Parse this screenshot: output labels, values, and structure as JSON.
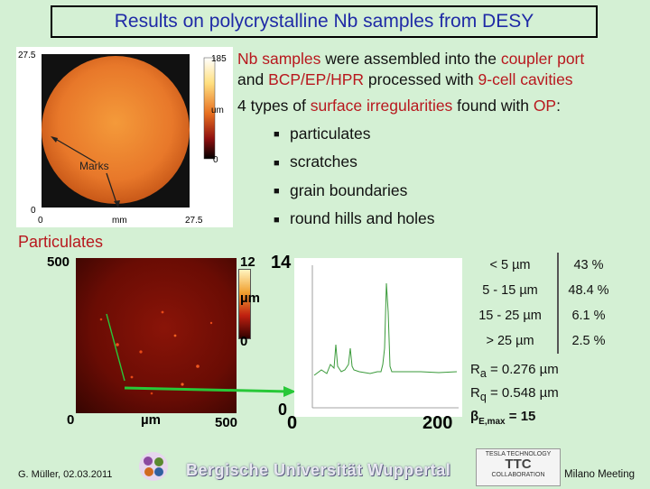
{
  "title": "Results on polycrystalline Nb samples from DESY",
  "bullets": {
    "line1_parts": [
      "Nb samples",
      " were assembled into the ",
      "coupler port"
    ],
    "line2_parts": [
      "and ",
      "BCP/EP/HPR",
      " processed with ",
      "9-cell cavities"
    ],
    "line3_parts": [
      "4 types of ",
      "surface irregularities",
      " found with ",
      "OP",
      ":"
    ],
    "items": [
      "particulates",
      "scratches",
      "grain boundaries",
      "round hills and holes"
    ]
  },
  "top_map": {
    "y_top": "27.5",
    "y_bottom": "0",
    "x_left": "0",
    "x_unit": "mm",
    "x_right": "27.5",
    "scale_top": "185",
    "scale_unit": "um",
    "scale_bottom": "0",
    "annotation": "Marks"
  },
  "section_label": "Particulates",
  "bottom_map": {
    "y_top": "500",
    "x_left": "0",
    "x_unit": "µm",
    "x_right": "500",
    "scale_top": "12",
    "scale_unit": "µm",
    "scale_bottom": "0"
  },
  "profile": {
    "y_top": "14",
    "y_bottom": "0",
    "x_left": "0",
    "x_right": "200"
  },
  "stats": [
    {
      "range": "< 5 µm",
      "pct": "43 %"
    },
    {
      "range": "5 - 15 µm",
      "pct": "48.4 %"
    },
    {
      "range": "15 - 25 µm",
      "pct": "6.1 %"
    },
    {
      "range": "> 25 µm",
      "pct": "2.5 %"
    }
  ],
  "roughness": {
    "ra_label": "R",
    "ra_sub": "a",
    "ra_value": " = 0.276 µm",
    "rq_label": "R",
    "rq_sub": "q",
    "rq_value": " = 0.548 µm",
    "beta_label": "β",
    "beta_sub": "E,max",
    "beta_value": " = 15"
  },
  "footer": {
    "author": "G. Müller, 02.03.2011",
    "university": "Bergische Universität Wuppertal",
    "ttc_top": "TESLA TECHNOLOGY",
    "ttc_mid": "TTC",
    "ttc_bottom": "COLLABORATION",
    "meeting": "Milano Meeting"
  }
}
